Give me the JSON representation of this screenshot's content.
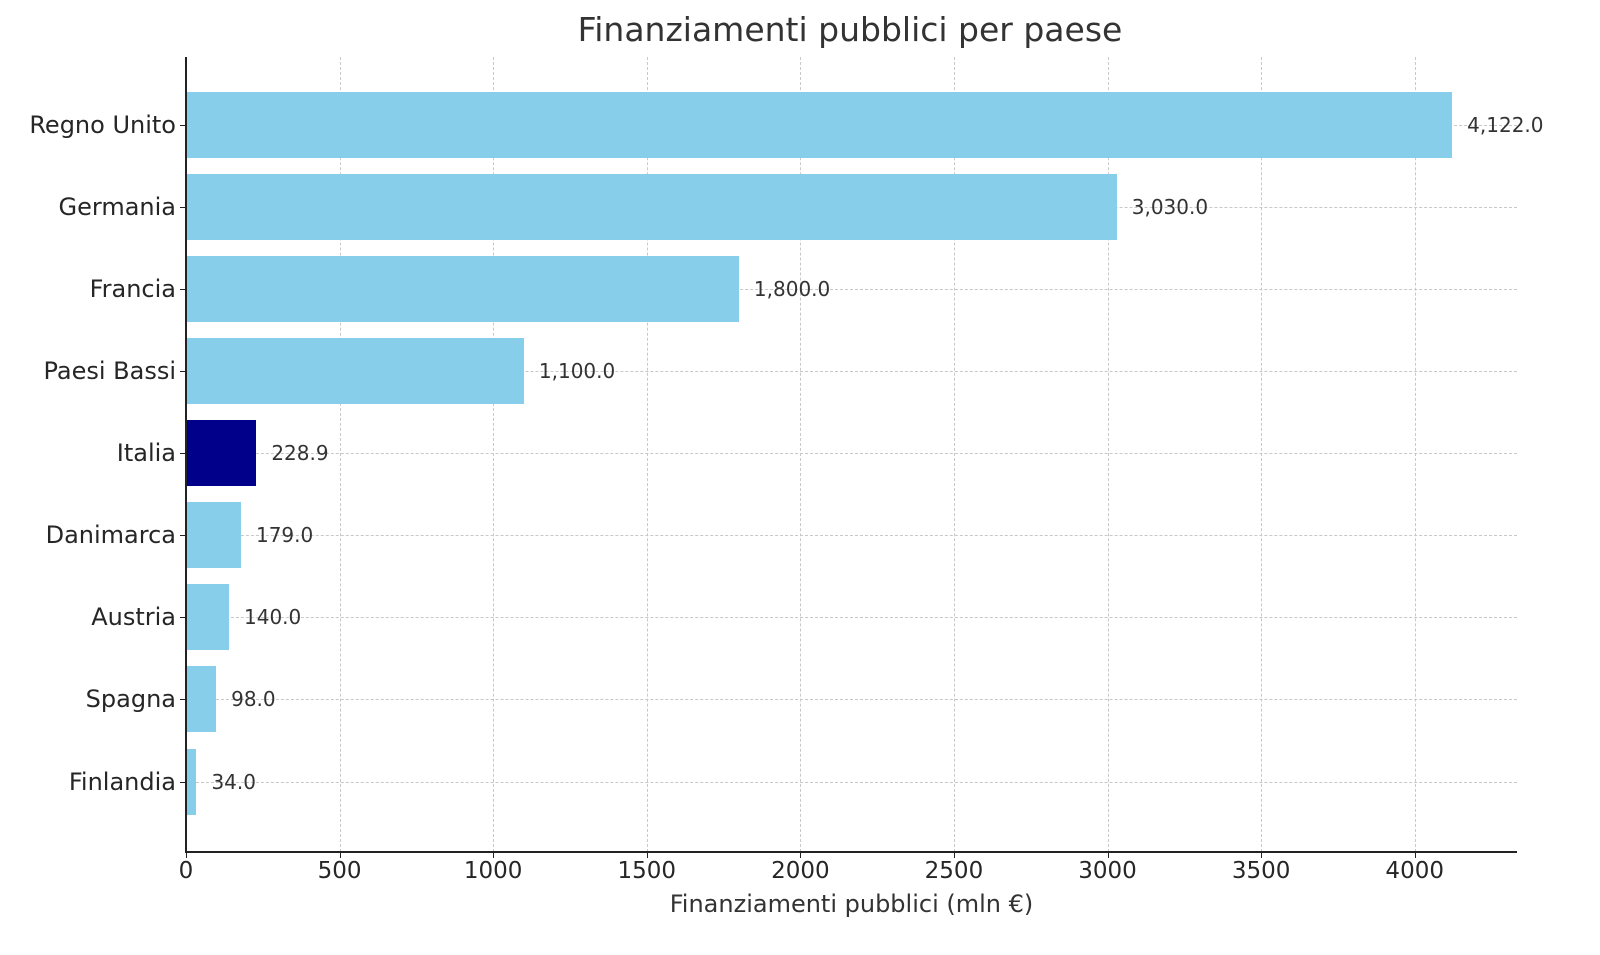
{
  "chart_data": {
    "type": "bar",
    "orientation": "horizontal",
    "title": "Finanziamenti pubblici per paese",
    "xlabel": "Finanziamenti pubblici (mln €)",
    "ylabel": "",
    "xlim": [
      0,
      4333
    ],
    "xticks": [
      0,
      500,
      1000,
      1500,
      2000,
      2500,
      3000,
      3500,
      4000
    ],
    "xtick_labels": [
      "0",
      "500",
      "1000",
      "1500",
      "2000",
      "2500",
      "3000",
      "3500",
      "4000"
    ],
    "grid": true,
    "categories": [
      "Regno Unito",
      "Germania",
      "Francia",
      "Paesi Bassi",
      "Italia",
      "Danimarca",
      "Austria",
      "Spagna",
      "Finlandia"
    ],
    "values": [
      4122.0,
      3030.0,
      1800.0,
      1100.0,
      228.9,
      179.0,
      140.0,
      98.0,
      34.0
    ],
    "value_labels": [
      "4,122.0",
      "3,030.0",
      "1,800.0",
      "1,100.0",
      "228.9",
      "179.0",
      "140.0",
      "98.0",
      "34.0"
    ],
    "colors": [
      "#87ceeb",
      "#87ceeb",
      "#87ceeb",
      "#87ceeb",
      "#00008b",
      "#87ceeb",
      "#87ceeb",
      "#87ceeb",
      "#87ceeb"
    ],
    "highlight": "Italia",
    "legend": null
  }
}
